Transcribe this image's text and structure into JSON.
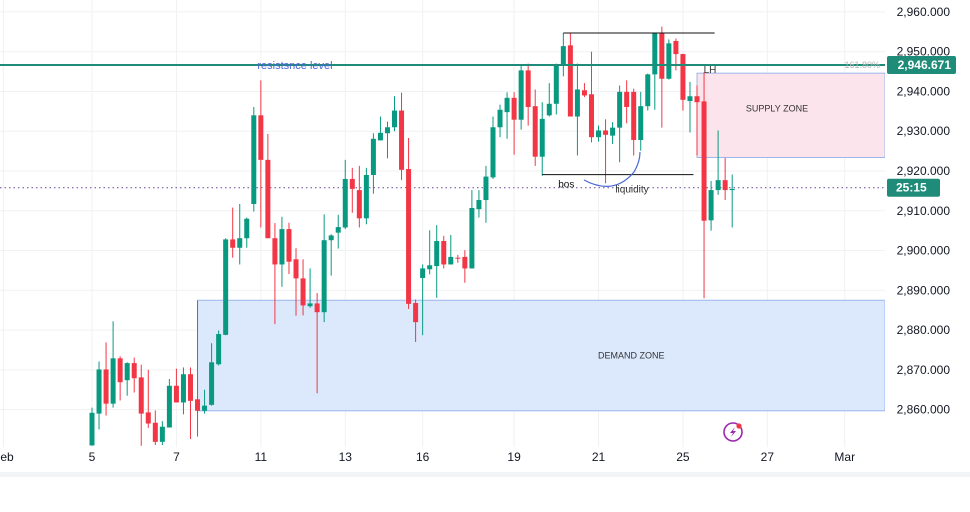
{
  "chart_data": {
    "type": "candlestick",
    "ylim": [
      2850.6,
      2963.0
    ],
    "grid": true,
    "colors": {
      "up": "#089981",
      "down": "#f23645",
      "resistance": "#1e8c78",
      "supply_fill": "#fce4ec",
      "demand_fill": "#dce9fc",
      "zone_border": "#9db7ee",
      "current_price": "#7b5ea7",
      "annotation_text": "#4a66d8"
    },
    "y_ticks": [
      2860,
      2870,
      2880,
      2890,
      2900,
      2910,
      2920,
      2930,
      2940,
      2950,
      2960
    ],
    "y_tick_labels": [
      "2,860.000",
      "2,870.000",
      "2,880.000",
      "2,890.000",
      "2,900.000",
      "2,910.000",
      "2,920.000",
      "2,930.000",
      "2,940.000",
      "2,950.000",
      "2,960.000"
    ],
    "x_ticks": [
      {
        "label": "Feb",
        "index": -12.6
      },
      {
        "label": "5",
        "index": 0
      },
      {
        "label": "7",
        "index": 12
      },
      {
        "label": "11",
        "index": 24
      },
      {
        "label": "13",
        "index": 36
      },
      {
        "label": "16",
        "index": 47
      },
      {
        "label": "19",
        "index": 60
      },
      {
        "label": "21",
        "index": 72
      },
      {
        "label": "25",
        "index": 84
      },
      {
        "label": "27",
        "index": 96
      },
      {
        "label": "Mar",
        "index": 107
      }
    ],
    "candles_ohlc": [
      [
        2851.0,
        2860.5,
        2850.9,
        2859.2
      ],
      [
        2859.0,
        2872.1,
        2855.0,
        2870.1
      ],
      [
        2870.1,
        2876.9,
        2858.5,
        2861.5
      ],
      [
        2861.5,
        2882.2,
        2860.5,
        2872.9
      ],
      [
        2872.9,
        2873.4,
        2862.3,
        2866.9
      ],
      [
        2867.4,
        2871.9,
        2863.5,
        2871.7
      ],
      [
        2871.7,
        2873.1,
        2864.3,
        2867.9
      ],
      [
        2868.1,
        2871.3,
        2850.9,
        2859.0
      ],
      [
        2859.3,
        2870.0,
        2855.4,
        2856.5
      ],
      [
        2856.7,
        2859.8,
        2851.1,
        2851.9
      ],
      [
        2851.9,
        2857.1,
        2851.1,
        2855.7
      ],
      [
        2855.5,
        2867.7,
        2855.5,
        2866.0
      ],
      [
        2866.0,
        2870.3,
        2861.8,
        2861.8
      ],
      [
        2861.8,
        2870.6,
        2858.8,
        2868.9
      ],
      [
        2868.9,
        2870.6,
        2852.6,
        2862.2
      ],
      [
        2862.6,
        2887.4,
        2853.2,
        2859.7
      ],
      [
        2859.7,
        2865.0,
        2859.0,
        2861.0
      ],
      [
        2861.2,
        2876.7,
        2861.0,
        2871.9
      ],
      [
        2871.4,
        2879.9,
        2871.1,
        2879.0
      ],
      [
        2878.8,
        2903.1,
        2878.7,
        2902.8
      ],
      [
        2902.8,
        2910.8,
        2898.2,
        2900.7
      ],
      [
        2900.7,
        2911.7,
        2896.5,
        2903.1
      ],
      [
        2903.1,
        2908.3,
        2900.7,
        2908.0
      ],
      [
        2911.7,
        2936.1,
        2909.8,
        2934.0
      ],
      [
        2934.0,
        2942.8,
        2905.8,
        2922.8
      ],
      [
        2922.8,
        2929.3,
        2903.1,
        2903.1
      ],
      [
        2903.1,
        2906.9,
        2881.5,
        2896.5
      ],
      [
        2896.5,
        2908.5,
        2890.9,
        2905.4
      ],
      [
        2905.4,
        2907.0,
        2894.1,
        2897.2
      ],
      [
        2897.8,
        2900.6,
        2883.6,
        2893.0
      ],
      [
        2893.0,
        2897.8,
        2883.7,
        2886.2
      ],
      [
        2886.0,
        2895.5,
        2885.6,
        2886.7
      ],
      [
        2886.7,
        2889.3,
        2864.1,
        2884.5
      ],
      [
        2884.5,
        2909.1,
        2882.0,
        2902.6
      ],
      [
        2902.6,
        2904.1,
        2893.7,
        2903.8
      ],
      [
        2904.5,
        2909.0,
        2900.5,
        2905.9
      ],
      [
        2905.8,
        2922.8,
        2905.4,
        2918.0
      ],
      [
        2918.0,
        2920.8,
        2909.5,
        2915.5
      ],
      [
        2915.2,
        2921.3,
        2905.8,
        2908.1
      ],
      [
        2908.1,
        2920.8,
        2906.6,
        2919.0
      ],
      [
        2919.0,
        2929.5,
        2914.3,
        2928.1
      ],
      [
        2927.7,
        2933.7,
        2927.7,
        2929.6
      ],
      [
        2929.5,
        2932.4,
        2923.2,
        2931.0
      ],
      [
        2931.0,
        2938.8,
        2930.0,
        2935.2
      ],
      [
        2935.2,
        2939.7,
        2917.7,
        2920.3
      ],
      [
        2920.5,
        2928.3,
        2885.3,
        2886.6
      ],
      [
        2886.8,
        2887.7,
        2877.0,
        2882.0
      ],
      [
        2893.1,
        2896.5,
        2878.7,
        2895.5
      ],
      [
        2895.3,
        2905.1,
        2894.0,
        2896.3
      ],
      [
        2896.1,
        2906.4,
        2888.1,
        2902.4
      ],
      [
        2902.4,
        2903.7,
        2895.5,
        2896.5
      ],
      [
        2896.5,
        2903.9,
        2896.5,
        2898.4
      ],
      [
        2898.2,
        2898.9,
        2896.9,
        2898.0
      ],
      [
        2898.4,
        2900.1,
        2891.9,
        2895.5
      ],
      [
        2895.5,
        2915.2,
        2895.5,
        2910.7
      ],
      [
        2910.4,
        2915.2,
        2908.3,
        2912.7
      ],
      [
        2912.7,
        2921.3,
        2907.0,
        2918.6
      ],
      [
        2918.4,
        2933.7,
        2918.0,
        2931.0
      ],
      [
        2931.0,
        2936.7,
        2928.5,
        2935.4
      ],
      [
        2934.8,
        2939.8,
        2928.1,
        2938.4
      ],
      [
        2938.4,
        2939.8,
        2924.1,
        2932.9
      ],
      [
        2932.9,
        2946.6,
        2930.4,
        2945.3
      ],
      [
        2945.3,
        2947.0,
        2931.4,
        2936.1
      ],
      [
        2936.3,
        2940.5,
        2921.3,
        2923.6
      ],
      [
        2923.6,
        2937.3,
        2918.8,
        2933.1
      ],
      [
        2934.0,
        2942.1,
        2933.7,
        2936.9
      ],
      [
        2936.9,
        2947.0,
        2934.2,
        2946.6
      ],
      [
        2946.6,
        2954.7,
        2943.8,
        2951.4
      ],
      [
        2951.6,
        2954.7,
        2933.7,
        2933.7
      ],
      [
        2933.7,
        2947.0,
        2923.9,
        2940.5
      ],
      [
        2940.3,
        2942.1,
        2938.6,
        2939.0
      ],
      [
        2939.3,
        2950.0,
        2927.2,
        2928.5
      ],
      [
        2928.5,
        2931.4,
        2927.4,
        2930.2
      ],
      [
        2930.2,
        2933.0,
        2916.9,
        2929.1
      ],
      [
        2928.9,
        2932.3,
        2926.8,
        2930.9
      ],
      [
        2930.9,
        2941.5,
        2922.2,
        2939.9
      ],
      [
        2939.9,
        2942.8,
        2932.0,
        2936.1
      ],
      [
        2939.9,
        2940.7,
        2923.9,
        2927.8
      ],
      [
        2927.8,
        2939.9,
        2925.1,
        2936.3
      ],
      [
        2936.3,
        2944.5,
        2935.2,
        2944.3
      ],
      [
        2944.3,
        2954.6,
        2935.4,
        2954.6
      ],
      [
        2954.6,
        2956.3,
        2930.9,
        2943.2
      ],
      [
        2943.2,
        2953.1,
        2943.0,
        2952.1
      ],
      [
        2952.7,
        2953.3,
        2945.3,
        2949.4
      ],
      [
        2949.4,
        2949.5,
        2935.2,
        2937.9
      ],
      [
        2937.6,
        2942.4,
        2929.7,
        2938.8
      ],
      [
        2938.8,
        2941.5,
        2923.9,
        2937.3
      ],
      [
        2937.5,
        2944.8,
        2888.0,
        2907.5
      ],
      [
        2907.6,
        2917.5,
        2905.0,
        2915.2
      ],
      [
        2915.2,
        2930.2,
        2914.0,
        2917.7
      ],
      [
        2917.7,
        2923.3,
        2912.7,
        2915.2
      ],
      [
        2915.2,
        2919.1,
        2905.8,
        2915.5
      ]
    ],
    "annotations": {
      "resistance": {
        "price": 2946.671,
        "label": "resistsnce level",
        "fib_label": "161.80%",
        "price_label": "2,946.671"
      },
      "supply_zone": {
        "label": "SUPPLY ZONE",
        "top": 2944.6,
        "bottom": 2923.4,
        "start_index": 86
      },
      "demand_zone": {
        "label": "DEMAND ZONE",
        "top": 2887.5,
        "bottom": 2859.7,
        "start_index": 15
      },
      "high_line": {
        "price": 2954.7,
        "start_index": 67,
        "end_index": 88.5
      },
      "bos_line": {
        "price": 2919.1,
        "start_index": 64,
        "end_index": 85.5,
        "label": "bos"
      },
      "liquidity": {
        "label": "liquidity"
      },
      "lower_high": {
        "label": "LH",
        "index": 87.5,
        "price": 2944.6
      },
      "current_price": {
        "price": 2915.8,
        "countdown_label": "25:15"
      }
    }
  }
}
